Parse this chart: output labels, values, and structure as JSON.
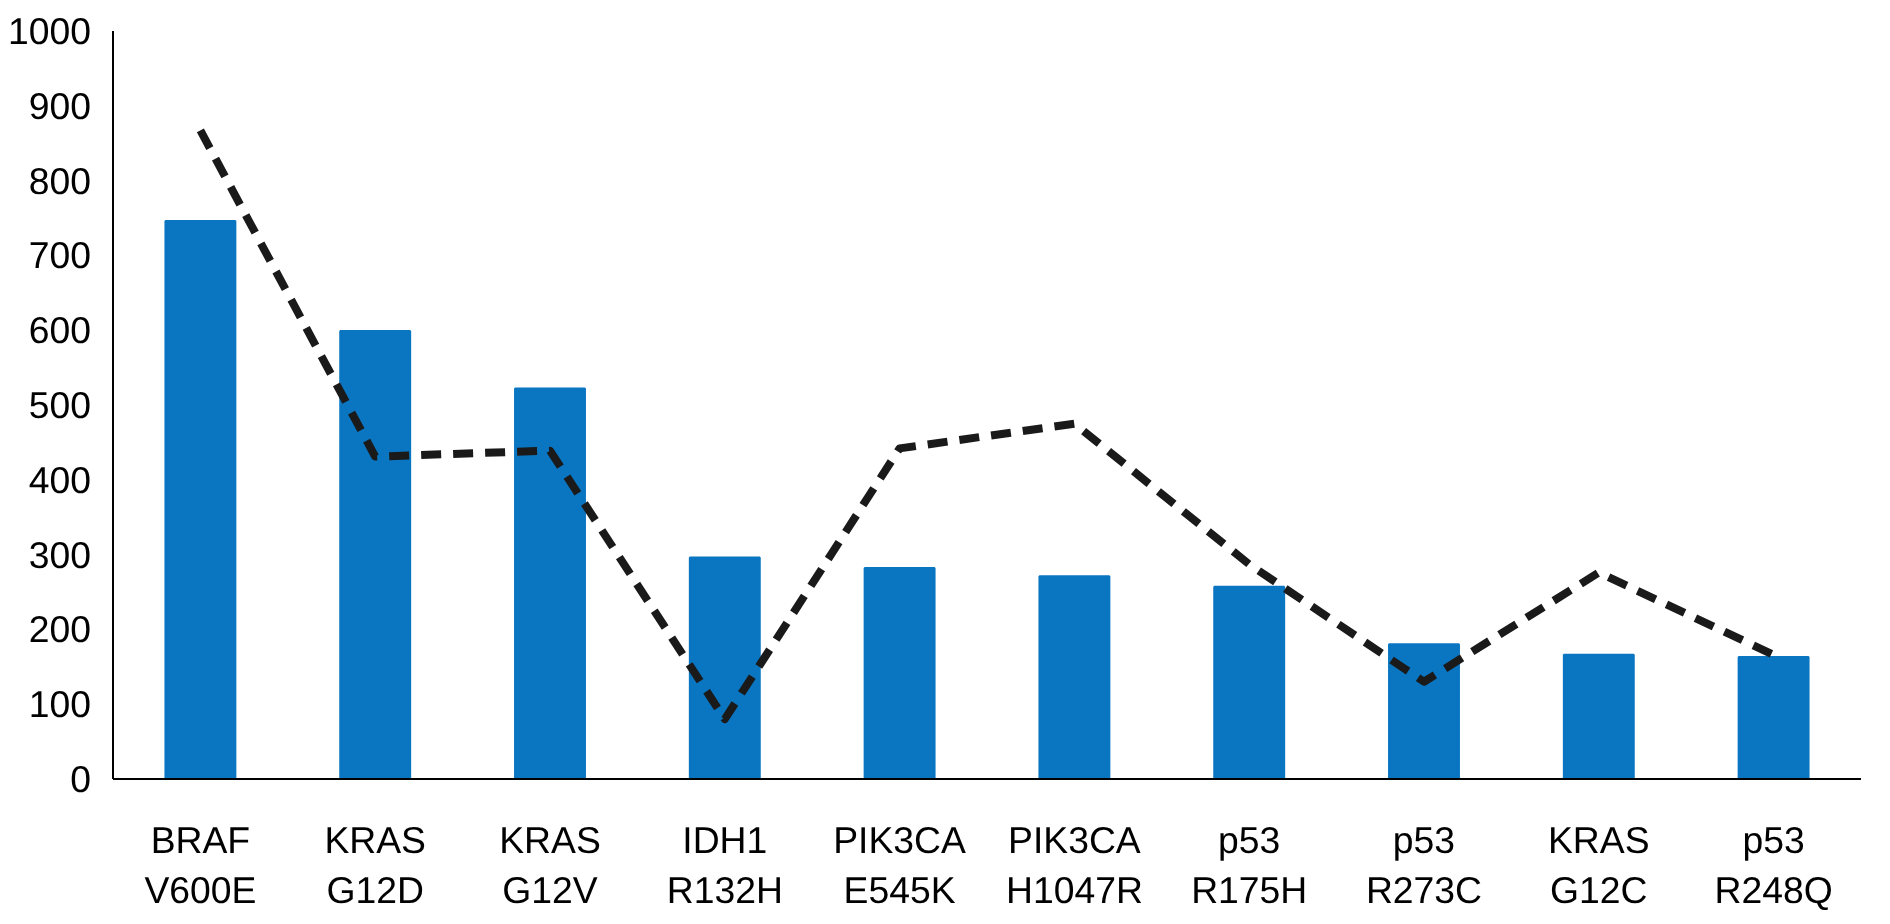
{
  "chart_data": {
    "type": "bar",
    "categories": [
      "BRAF\nV600E",
      "KRAS\nG12D",
      "KRAS\nG12V",
      "IDH1\nR132H",
      "PIK3CA\nE545K",
      "PIK3CA\nH1047R",
      "p53\nR175H",
      "p53\nR273C",
      "KRAS\nG12C",
      "p53\nR248Q"
    ],
    "series": [
      {
        "color": "#0a76c2",
        "values": [
          746,
          599,
          522,
          296,
          282,
          271,
          257,
          180,
          166,
          163
        ]
      },
      {
        "type": "line",
        "color": "#1a1a1a",
        "line_style": "dashed",
        "values": [
          867,
          431,
          439,
          80,
          442,
          475,
          287,
          130,
          276,
          166
        ]
      }
    ],
    "ylim": [
      0,
      1000
    ],
    "yticks": [
      0,
      100,
      200,
      300,
      400,
      500,
      600,
      700,
      800,
      900,
      1000
    ],
    "grid": false
  }
}
